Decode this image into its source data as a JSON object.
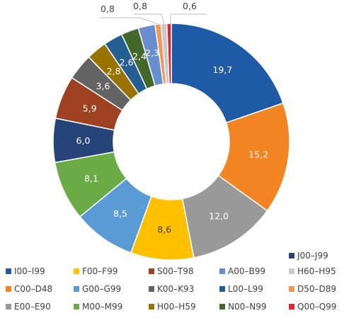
{
  "chart_data": {
    "type": "pie",
    "donut": true,
    "title": "",
    "categories": [
      "I00–I99",
      "C00–D48",
      "E00–E90",
      "F00–F99",
      "G00–G99",
      "M00–M99",
      "J00–J99",
      "S00–T98",
      "K00–K93",
      "H00–H59",
      "L00–L99",
      "N00–N99",
      "A00–B99",
      "D50–D89",
      "H60–H95",
      "Q00–Q99"
    ],
    "values": [
      19.7,
      15.2,
      12.0,
      8.6,
      8.5,
      8.1,
      6.0,
      5.9,
      3.6,
      2.8,
      2.6,
      2.4,
      2.3,
      0.8,
      0.8,
      0.6
    ],
    "value_labels": [
      "19,7",
      "15,2",
      "12,0",
      "8,6",
      "8,5",
      "8,1",
      "6,0",
      "5,9",
      "3,6",
      "2,8",
      "2,6",
      "2,4",
      "2,3",
      "0,8",
      "0,8",
      "0,6"
    ],
    "colors": [
      "#1f5aa6",
      "#f28522",
      "#999999",
      "#ffc000",
      "#5b9bd5",
      "#6aab45",
      "#264478",
      "#9e4121",
      "#636363",
      "#997300",
      "#255e91",
      "#43682b",
      "#698ed0",
      "#f1975a",
      "#c9c9c9",
      "#e0262e"
    ],
    "legend_position": "bottom",
    "legend_rows": [
      [
        "J00–J99"
      ],
      [
        "I00–I99",
        "F00–F99",
        "S00–T98",
        "A00–B99",
        "H60–H95"
      ],
      [
        "C00–D48",
        "G00–G99",
        "K00–K93",
        "L00–L99",
        "D50–D89"
      ],
      [
        "E00–E90",
        "M00–M99",
        "H00–H59",
        "N00–N99",
        "Q00–Q99"
      ]
    ]
  }
}
